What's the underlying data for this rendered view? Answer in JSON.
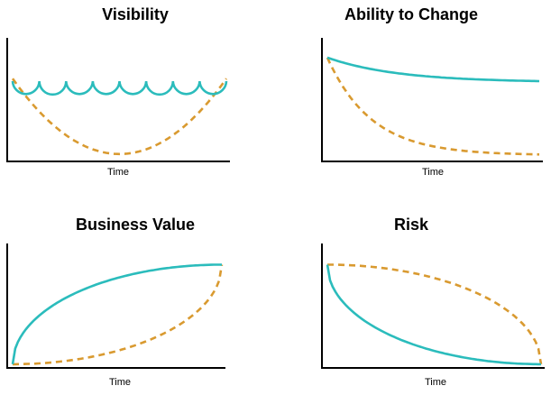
{
  "colors": {
    "solid": "#2bbcbc",
    "dashed": "#d99a30",
    "axis": "#000000"
  },
  "chart_data": [
    {
      "type": "line",
      "title": "Visibility",
      "xlabel": "Time",
      "ylabel": "",
      "series": [
        {
          "style": "solid",
          "shape": "scalloped",
          "level": 0.65,
          "scallops": 8
        },
        {
          "style": "dashed",
          "shape": "u-curve",
          "start": 0.67,
          "min": 0.06,
          "end": 0.67
        }
      ]
    },
    {
      "type": "line",
      "title": "Ability to Change",
      "xlabel": "Time",
      "ylabel": "",
      "series": [
        {
          "style": "solid",
          "shape": "slow-decay",
          "start": 0.84,
          "end": 0.64
        },
        {
          "style": "dashed",
          "shape": "fast-decay",
          "start": 0.84,
          "end": 0.05
        }
      ]
    },
    {
      "type": "line",
      "title": "Business Value",
      "xlabel": "Time",
      "ylabel": "",
      "series": [
        {
          "style": "solid",
          "shape": "concave-growth",
          "start": 0.03,
          "end": 0.83
        },
        {
          "style": "dashed",
          "shape": "convex-growth",
          "start": 0.03,
          "end": 0.83
        }
      ]
    },
    {
      "type": "line",
      "title": "Risk",
      "xlabel": "Time",
      "ylabel": "",
      "series": [
        {
          "style": "solid",
          "shape": "convex-decline",
          "start": 0.83,
          "end": 0.03
        },
        {
          "style": "dashed",
          "shape": "concave-decline",
          "start": 0.83,
          "end": 0.03
        }
      ]
    }
  ]
}
